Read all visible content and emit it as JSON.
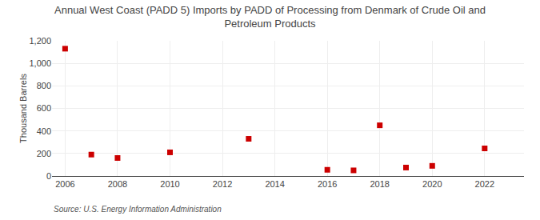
{
  "chart_data": {
    "type": "scatter",
    "title": "Annual West Coast (PADD 5) Imports by PADD of Processing from Denmark of Crude Oil and\nPetroleum Products",
    "ylabel": "Thousand Barrels",
    "annotations": [
      "Source: U.S. Energy Information Administration"
    ],
    "x": [
      2006,
      2007,
      2008,
      2010,
      2013,
      2016,
      2017,
      2018,
      2019,
      2020,
      2022
    ],
    "values": [
      1130,
      190,
      160,
      210,
      330,
      55,
      50,
      450,
      75,
      90,
      245
    ],
    "color": "#cc0000",
    "marker": "square",
    "xlim": [
      2005.5,
      2023.5
    ],
    "xticks": [
      2006,
      2008,
      2010,
      2012,
      2014,
      2016,
      2018,
      2020,
      2022
    ],
    "ylim": [
      0,
      1200
    ],
    "yticks": [
      0,
      200,
      400,
      600,
      800,
      {
        "value": 1000,
        "label": "1,000"
      },
      {
        "value": 1200,
        "label": "1,200"
      }
    ],
    "grid": true
  }
}
